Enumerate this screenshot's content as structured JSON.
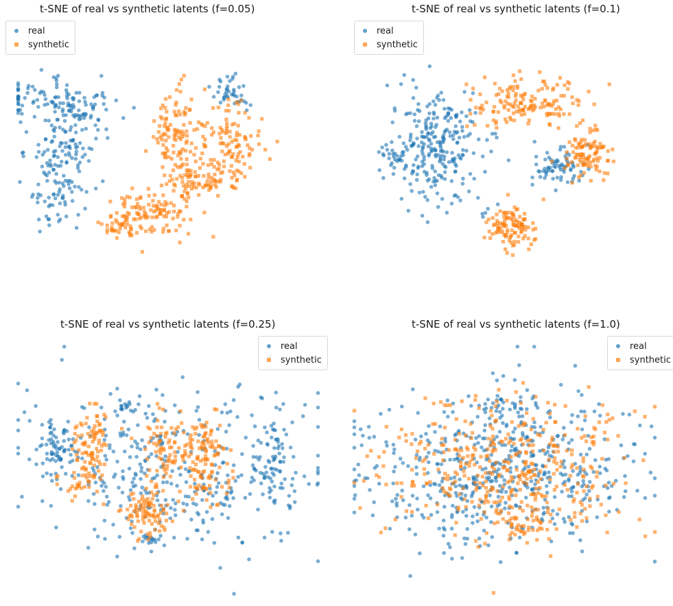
{
  "chart_data": [
    {
      "type": "scatter",
      "title": "t-SNE of real vs synthetic latents (f=0.05)",
      "legend_position": "top-left",
      "series": [
        {
          "name": "real",
          "color": "#1f77b4",
          "marker": "circle",
          "clusters": [
            {
              "cx": -80,
              "cy": 45,
              "sx": 22,
              "sy": 8,
              "n": 90
            },
            {
              "cx": -62,
              "cy": 30,
              "sx": 10,
              "sy": 10,
              "n": 60
            },
            {
              "cx": -72,
              "cy": 5,
              "sx": 10,
              "sy": 10,
              "n": 60
            },
            {
              "cx": -72,
              "cy": -25,
              "sx": 9,
              "sy": 14,
              "n": 70
            },
            {
              "cx": 38,
              "cy": 55,
              "sx": 5,
              "sy": 5,
              "n": 30
            },
            {
              "cx": 47,
              "cy": 45,
              "sx": 4,
              "sy": 4,
              "n": 10
            }
          ]
        },
        {
          "name": "synthetic",
          "color": "#ff7f0e",
          "marker": "square",
          "clusters": [
            {
              "cx": 5,
              "cy": 20,
              "sx": 8,
              "sy": 18,
              "n": 110
            },
            {
              "cx": 40,
              "cy": 15,
              "sx": 10,
              "sy": 14,
              "n": 110
            },
            {
              "cx": 20,
              "cy": -15,
              "sx": 12,
              "sy": 6,
              "n": 80
            },
            {
              "cx": -10,
              "cy": -40,
              "sx": 14,
              "sy": 9,
              "n": 110
            },
            {
              "cx": -32,
              "cy": -50,
              "sx": 5,
              "sy": 4,
              "n": 30
            }
          ]
        }
      ]
    },
    {
      "type": "scatter",
      "title": "t-SNE of real vs synthetic latents (f=0.1)",
      "legend_position": "top-left",
      "series": [
        {
          "name": "real",
          "color": "#1f77b4",
          "marker": "circle",
          "clusters": [
            {
              "cx": -45,
              "cy": 10,
              "sx": 14,
              "sy": 22,
              "n": 260
            },
            {
              "cx": -72,
              "cy": 5,
              "sx": 3,
              "sy": 4,
              "n": 20
            },
            {
              "cx": 35,
              "cy": -5,
              "sx": 9,
              "sy": 9,
              "n": 70
            },
            {
              "cx": -10,
              "cy": -40,
              "sx": 3,
              "sy": 3,
              "n": 5
            }
          ]
        },
        {
          "name": "synthetic",
          "color": "#ff7f0e",
          "marker": "square",
          "clusters": [
            {
              "cx": 15,
              "cy": 45,
              "sx": 18,
              "sy": 9,
              "n": 150
            },
            {
              "cx": 55,
              "cy": 5,
              "sx": 8,
              "sy": 10,
              "n": 100
            },
            {
              "cx": 5,
              "cy": -50,
              "sx": 7,
              "sy": 8,
              "n": 110
            }
          ]
        }
      ]
    },
    {
      "type": "scatter",
      "title": "t-SNE of real vs synthetic latents (f=0.25)",
      "legend_position": "top-right",
      "series": [
        {
          "name": "real",
          "color": "#1f77b4",
          "marker": "circle",
          "clusters": [
            {
              "cx": 0,
              "cy": 0,
              "sx": 48,
              "sy": 32,
              "n": 380
            },
            {
              "cx": -75,
              "cy": 20,
              "sx": 6,
              "sy": 12,
              "n": 60
            },
            {
              "cx": 68,
              "cy": 5,
              "sx": 6,
              "sy": 14,
              "n": 60
            },
            {
              "cx": -28,
              "cy": 50,
              "sx": 4,
              "sy": 4,
              "n": 15
            },
            {
              "cx": -10,
              "cy": -55,
              "sx": 3,
              "sy": 3,
              "n": 15
            }
          ]
        },
        {
          "name": "synthetic",
          "color": "#ff7f0e",
          "marker": "square",
          "clusters": [
            {
              "cx": -50,
              "cy": 20,
              "sx": 6,
              "sy": 14,
              "n": 90
            },
            {
              "cx": -60,
              "cy": -10,
              "sx": 5,
              "sy": 5,
              "n": 25
            },
            {
              "cx": 0,
              "cy": 15,
              "sx": 8,
              "sy": 16,
              "n": 90
            },
            {
              "cx": 25,
              "cy": 5,
              "sx": 8,
              "sy": 20,
              "n": 110
            },
            {
              "cx": -15,
              "cy": -35,
              "sx": 8,
              "sy": 10,
              "n": 90
            }
          ]
        }
      ]
    },
    {
      "type": "scatter",
      "title": "t-SNE of real vs synthetic latents (f=1.0)",
      "legend_position": "top-right",
      "series": [
        {
          "name": "real",
          "color": "#1f77b4",
          "marker": "circle",
          "clusters": [
            {
              "cx": 0,
              "cy": 0,
              "sx": 42,
              "sy": 30,
              "n": 550
            },
            {
              "cx": 0,
              "cy": 52,
              "sx": 18,
              "sy": 4,
              "n": 30
            }
          ]
        },
        {
          "name": "synthetic",
          "color": "#ff7f0e",
          "marker": "square",
          "clusters": [
            {
              "cx": 0,
              "cy": 0,
              "sx": 38,
              "sy": 26,
              "n": 420
            },
            {
              "cx": 10,
              "cy": -45,
              "sx": 10,
              "sy": 6,
              "n": 40
            }
          ]
        }
      ]
    }
  ]
}
